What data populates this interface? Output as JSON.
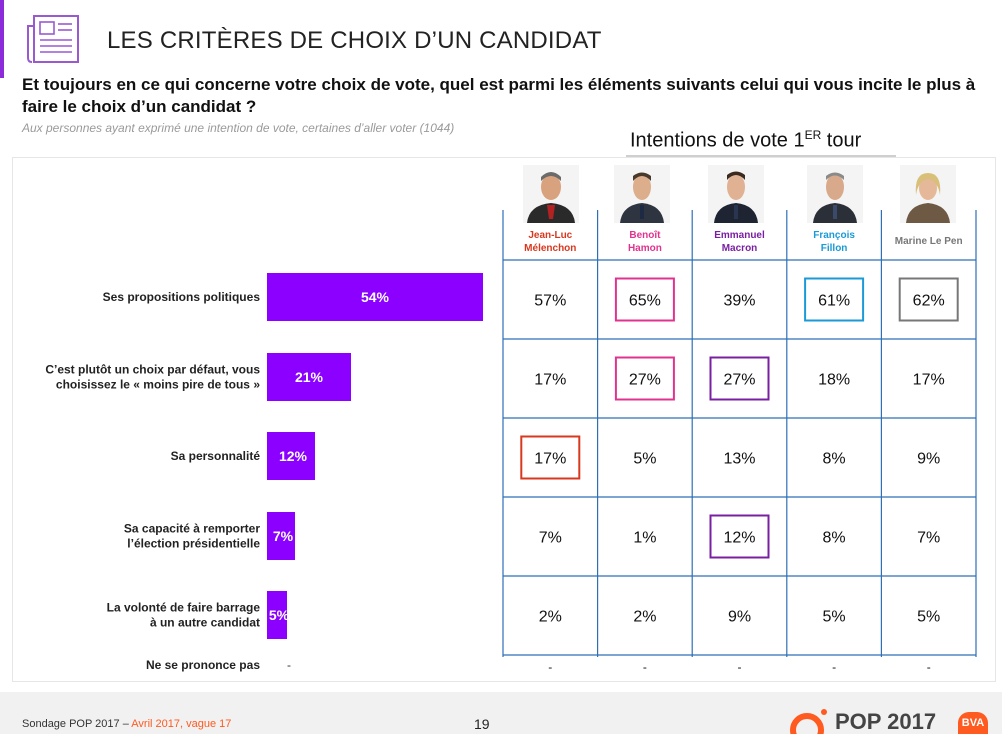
{
  "page": {
    "title": "LES CRITÈRES DE CHOIX D’UN CANDIDAT",
    "question": "Et toujours en ce qui concerne votre choix de vote, quel est parmi les éléments suivants celui qui vous incite le plus à faire le choix d’un candidat ?",
    "base": "Aux personnes ayant exprimé une intention de vote, certaines d’aller voter (1044)",
    "column_group_title": "Intentions de vote 1",
    "column_group_sup": "ER",
    "column_group_suffix": " tour"
  },
  "footer": {
    "source": "Sondage POP 2017 – ",
    "date": "Avril 2017, vague 17",
    "page_number": "19",
    "logo_text": "POP 2017",
    "badge_text": "BVA"
  },
  "colors": {
    "accent": "#8b00ff",
    "grid": "#2e6fb7",
    "melenchon": "#d9381e",
    "hamon": "#e0338f",
    "macron": "#7a1fa2",
    "fillon": "#1a9ad6",
    "lepen": "#9a9a9a"
  },
  "chart_data": [
    {
      "type": "bar",
      "orientation": "horizontal",
      "categories": [
        "Ses propositions politiques",
        "C’est plutôt un choix par défaut, vous choisissez le « moins pire de tous »",
        "Sa personnalité",
        "Sa capacité à remporter l’élection présidentielle",
        "La volonté de faire barrage à un autre candidat",
        "Ne se prononce pas"
      ],
      "category_lines": [
        [
          "Ses propositions politiques"
        ],
        [
          "C’est plutôt un choix par défaut, vous",
          "choisissez le « moins pire de tous »"
        ],
        [
          "Sa personnalité"
        ],
        [
          "Sa capacité à remporter",
          "l’élection présidentielle"
        ],
        [
          "La volonté de faire barrage",
          "à un autre candidat"
        ],
        [
          "Ne se prononce pas"
        ]
      ],
      "values": [
        54,
        21,
        12,
        7,
        5,
        0
      ],
      "labels": [
        "54%",
        "21%",
        "12%",
        "7%",
        "5%",
        "-"
      ],
      "bar_color": "#8b00ff"
    },
    {
      "type": "table",
      "columns": [
        {
          "name": "Jean-Luc Mélenchon",
          "lines": [
            "Jean-Luc",
            "Mélenchon"
          ],
          "color": "#d9381e"
        },
        {
          "name": "Benoît Hamon",
          "lines": [
            "Benoît",
            "Hamon"
          ],
          "color": "#e0338f"
        },
        {
          "name": "Emmanuel Macron",
          "lines": [
            "Emmanuel",
            "Macron"
          ],
          "color": "#7a1fa2"
        },
        {
          "name": "François Fillon",
          "lines": [
            "François",
            "Fillon"
          ],
          "color": "#1a9ad6"
        },
        {
          "name": "Marine Le Pen",
          "lines": [
            "Marine Le Pen"
          ],
          "color": "#777777"
        }
      ],
      "rows": [
        [
          "57%",
          "65%",
          "39%",
          "61%",
          "62%"
        ],
        [
          "17%",
          "27%",
          "27%",
          "18%",
          "17%"
        ],
        [
          "17%",
          "5%",
          "13%",
          "8%",
          "9%"
        ],
        [
          "7%",
          "1%",
          "12%",
          "8%",
          "7%"
        ],
        [
          "2%",
          "2%",
          "9%",
          "5%",
          "5%"
        ],
        [
          "-",
          "-",
          "-",
          "-",
          "-"
        ]
      ],
      "highlights": [
        {
          "row": 0,
          "col": 1
        },
        {
          "row": 0,
          "col": 3
        },
        {
          "row": 0,
          "col": 4
        },
        {
          "row": 1,
          "col": 1
        },
        {
          "row": 1,
          "col": 2
        },
        {
          "row": 2,
          "col": 0
        },
        {
          "row": 3,
          "col": 2
        }
      ]
    }
  ]
}
